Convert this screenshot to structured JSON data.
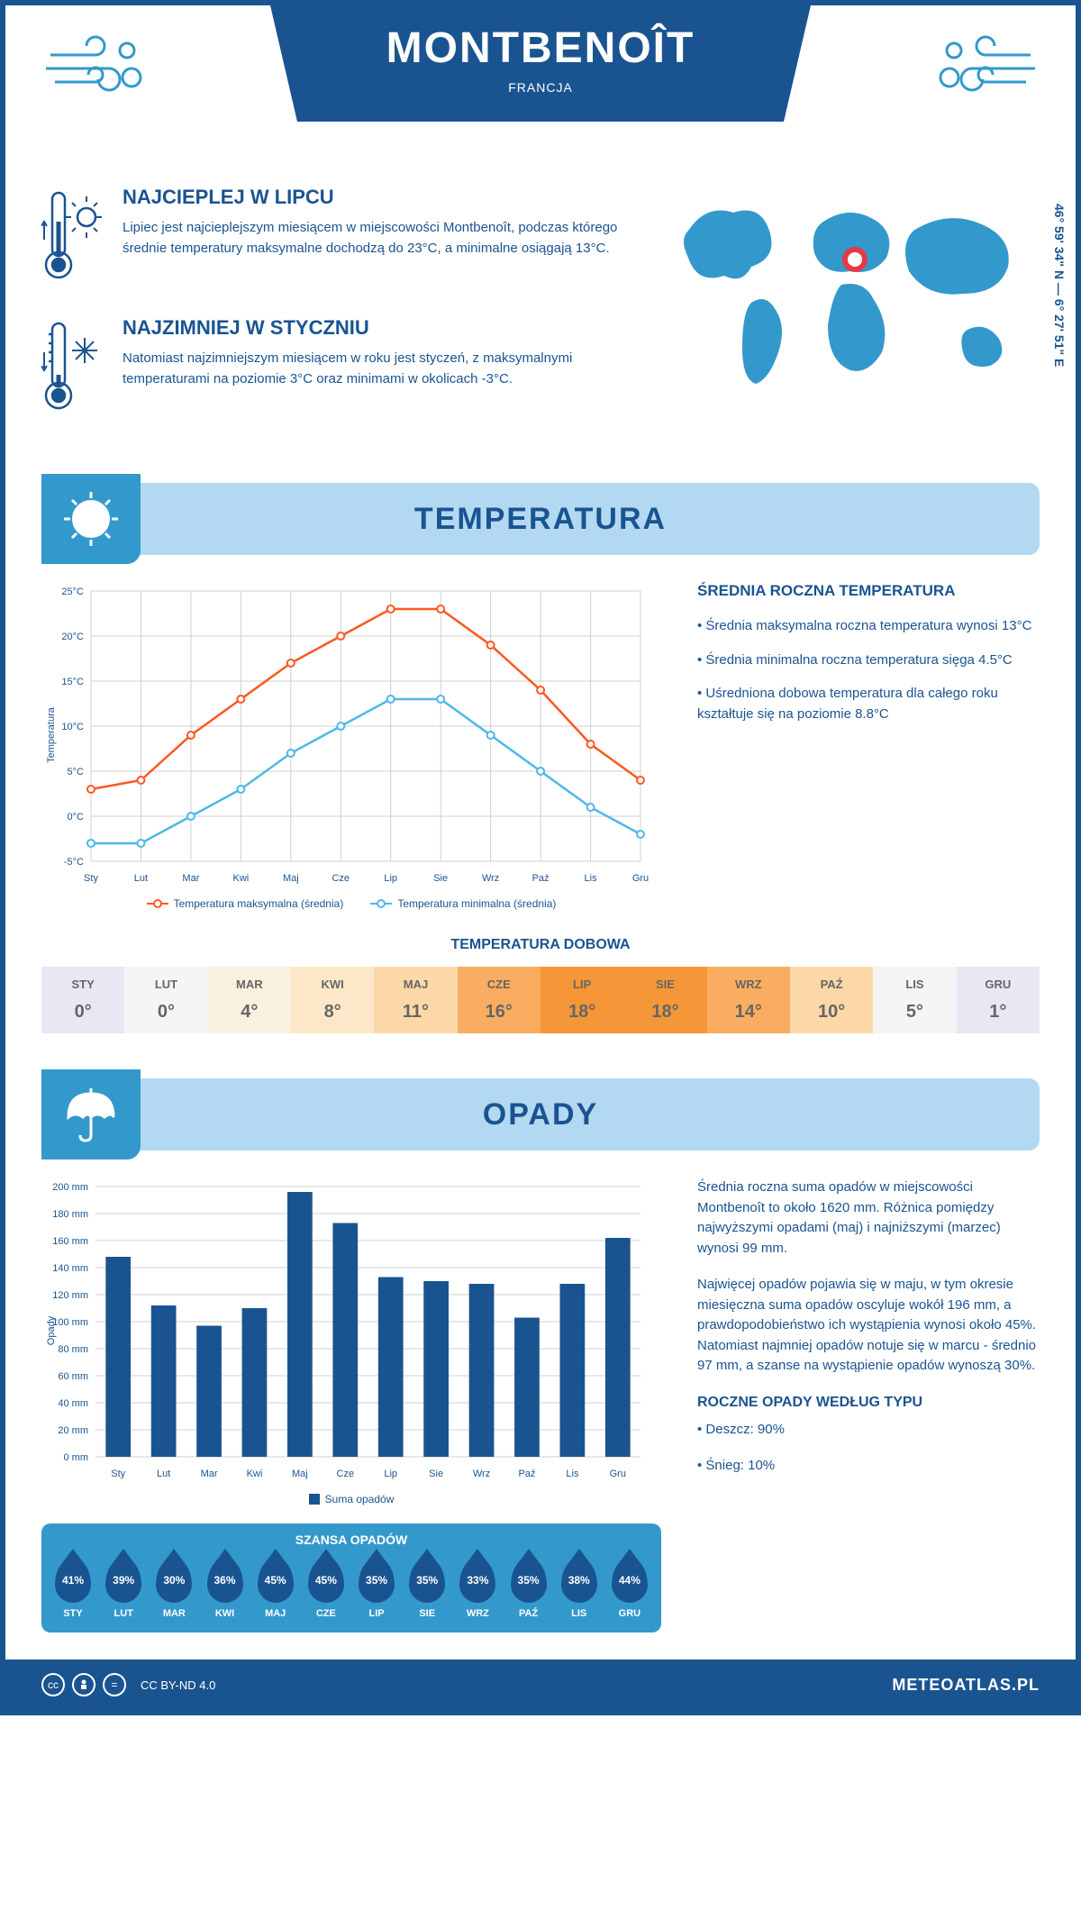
{
  "header": {
    "title": "MONTBENOÎT",
    "country": "FRANCJA"
  },
  "coords": "46° 59' 34\" N — 6° 27' 51\" E",
  "summary": {
    "warm": {
      "title": "NAJCIEPLEJ W LIPCU",
      "text": "Lipiec jest najcieplejszym miesiącem w miejscowości Montbenoît, podczas którego średnie temperatury maksymalne dochodzą do 23°C, a minimalne osiągają 13°C."
    },
    "cold": {
      "title": "NAJZIMNIEJ W STYCZNIU",
      "text": "Natomiast najzimniejszym miesiącem w roku jest styczeń, z maksymalnymi temperaturami na poziomie 3°C oraz minimami w okolicach -3°C."
    }
  },
  "sections": {
    "temperature": "TEMPERATURA",
    "precipitation": "OPADY"
  },
  "temp_chart": {
    "type": "line",
    "months": [
      "Sty",
      "Lut",
      "Mar",
      "Kwi",
      "Maj",
      "Cze",
      "Lip",
      "Sie",
      "Wrz",
      "Paź",
      "Lis",
      "Gru"
    ],
    "max_values": [
      3,
      4,
      9,
      13,
      17,
      20,
      23,
      23,
      19,
      14,
      8,
      4
    ],
    "min_values": [
      -3,
      -3,
      0,
      3,
      7,
      10,
      13,
      13,
      9,
      5,
      1,
      -2
    ],
    "max_color": "#ff5722",
    "min_color": "#4db8e8",
    "ylabel": "Temperatura",
    "ylim": [
      -5,
      25
    ],
    "ytick_step": 5,
    "ytick_suffix": "°C",
    "grid_color": "#d0d0d0",
    "background_color": "#ffffff",
    "legend_max": "Temperatura maksymalna (średnia)",
    "legend_min": "Temperatura minimalna (średnia)"
  },
  "temp_stats": {
    "title": "ŚREDNIA ROCZNA TEMPERATURA",
    "items": [
      "• Średnia maksymalna roczna temperatura wynosi 13°C",
      "• Średnia minimalna roczna temperatura sięga 4.5°C",
      "• Uśredniona dobowa temperatura dla całego roku kształtuje się na poziomie 8.8°C"
    ]
  },
  "daily_temp": {
    "title": "TEMPERATURA DOBOWA",
    "months": [
      "STY",
      "LUT",
      "MAR",
      "KWI",
      "MAJ",
      "CZE",
      "LIP",
      "SIE",
      "WRZ",
      "PAŹ",
      "LIS",
      "GRU"
    ],
    "values": [
      "0°",
      "0°",
      "4°",
      "8°",
      "11°",
      "16°",
      "18°",
      "18°",
      "14°",
      "10°",
      "5°",
      "1°"
    ],
    "bg_colors": [
      "#e8e8f5",
      "#f5f5f5",
      "#faf0e0",
      "#fce8c8",
      "#fcd8a8",
      "#faad60",
      "#f59638",
      "#f59638",
      "#faad60",
      "#fcd8a8",
      "#f5f5f5",
      "#e8e8f5"
    ],
    "text_color": "#666666"
  },
  "precip_chart": {
    "type": "bar",
    "months": [
      "Sty",
      "Lut",
      "Mar",
      "Kwi",
      "Maj",
      "Cze",
      "Lip",
      "Sie",
      "Wrz",
      "Paź",
      "Lis",
      "Gru"
    ],
    "values": [
      148,
      112,
      97,
      110,
      196,
      173,
      133,
      130,
      128,
      103,
      128,
      162
    ],
    "bar_color": "#1a5490",
    "ylabel": "Opady",
    "ylim": [
      0,
      200
    ],
    "ytick_step": 20,
    "ytick_suffix": " mm",
    "grid_color": "#d0d0d0",
    "legend": "Suma opadów"
  },
  "precip_text": {
    "p1": "Średnia roczna suma opadów w miejscowości Montbenoît to około 1620 mm. Różnica pomiędzy najwyższymi opadami (maj) i najniższymi (marzec) wynosi 99 mm.",
    "p2": "Najwięcej opadów pojawia się w maju, w tym okresie miesięczna suma opadów oscyluje wokół 196 mm, a prawdopodobieństwo ich wystąpienia wynosi około 45%. Natomiast najmniej opadów notuje się w marcu - średnio 97 mm, a szanse na wystąpienie opadów wynoszą 30%.",
    "by_type_title": "ROCZNE OPADY WEDŁUG TYPU",
    "by_type": [
      "• Deszcz: 90%",
      "• Śnieg: 10%"
    ]
  },
  "rain_chance": {
    "title": "SZANSA OPADÓW",
    "months": [
      "STY",
      "LUT",
      "MAR",
      "KWI",
      "MAJ",
      "CZE",
      "LIP",
      "SIE",
      "WRZ",
      "PAŹ",
      "LIS",
      "GRU"
    ],
    "values": [
      "41%",
      "39%",
      "30%",
      "36%",
      "45%",
      "45%",
      "35%",
      "35%",
      "33%",
      "35%",
      "38%",
      "44%"
    ],
    "drop_color": "#1a5490",
    "bg_color": "#3399cc"
  },
  "footer": {
    "license": "CC BY-ND 4.0",
    "brand": "METEOATLAS.PL"
  },
  "colors": {
    "primary": "#1a5490",
    "secondary": "#3399cc",
    "light_blue": "#b3d9f2",
    "map_blue": "#3399cc",
    "marker_red": "#e63946"
  }
}
